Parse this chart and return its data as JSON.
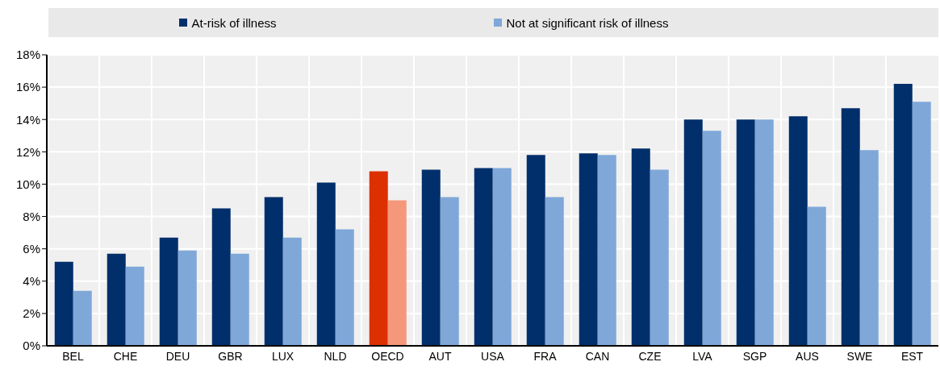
{
  "chart_data": {
    "type": "bar",
    "categories": [
      "BEL",
      "CHE",
      "DEU",
      "GBR",
      "LUX",
      "NLD",
      "OECD",
      "AUT",
      "USA",
      "FRA",
      "CAN",
      "CZE",
      "LVA",
      "SGP",
      "AUS",
      "SWE",
      "EST"
    ],
    "series": [
      {
        "name": "At-risk of illness",
        "color": "#002f6c",
        "colors": [
          "#002f6c",
          "#002f6c",
          "#002f6c",
          "#002f6c",
          "#002f6c",
          "#002f6c",
          "#dc3000",
          "#002f6c",
          "#002f6c",
          "#002f6c",
          "#002f6c",
          "#002f6c",
          "#002f6c",
          "#002f6c",
          "#002f6c",
          "#002f6c",
          "#002f6c"
        ],
        "values": [
          5.2,
          5.7,
          6.7,
          8.5,
          9.2,
          10.1,
          10.8,
          10.9,
          11.0,
          11.8,
          11.9,
          12.2,
          14.0,
          14.0,
          14.2,
          14.7,
          16.2
        ]
      },
      {
        "name": "Not at significant risk of illness",
        "color": "#7fa8d9",
        "colors": [
          "#7fa8d9",
          "#7fa8d9",
          "#7fa8d9",
          "#7fa8d9",
          "#7fa8d9",
          "#7fa8d9",
          "#f5977a",
          "#7fa8d9",
          "#7fa8d9",
          "#7fa8d9",
          "#7fa8d9",
          "#7fa8d9",
          "#7fa8d9",
          "#7fa8d9",
          "#7fa8d9",
          "#7fa8d9",
          "#7fa8d9"
        ],
        "values": [
          3.4,
          4.9,
          5.9,
          5.7,
          6.7,
          7.2,
          9.0,
          9.2,
          11.0,
          9.2,
          11.8,
          10.9,
          13.3,
          14.0,
          8.6,
          12.1,
          15.1
        ]
      }
    ],
    "ylim": [
      0,
      18
    ],
    "yticks": [
      {
        "value": 0,
        "label": "0%"
      },
      {
        "value": 2,
        "label": "2%"
      },
      {
        "value": 4,
        "label": "4%"
      },
      {
        "value": 6,
        "label": "6%"
      },
      {
        "value": 8,
        "label": "8%"
      },
      {
        "value": 10,
        "label": "10%"
      },
      {
        "value": 12,
        "label": "12%"
      },
      {
        "value": 14,
        "label": "14%"
      },
      {
        "value": 16,
        "label": "16%"
      },
      {
        "value": 18,
        "label": "18%"
      }
    ],
    "grid": true,
    "legend": "top"
  }
}
